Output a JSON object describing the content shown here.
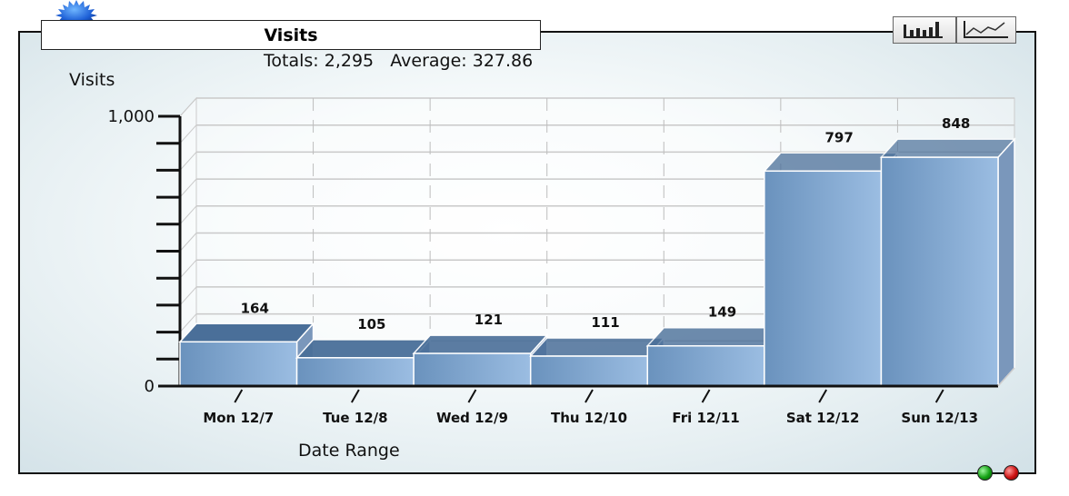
{
  "header": {
    "title": "Visits",
    "totals_label": "Totals:",
    "totals_value": "2,295",
    "average_label": "Average:",
    "average_value": "327.86"
  },
  "toolbar": {
    "bar_icon": "bar-chart-icon",
    "line_icon": "line-chart-icon"
  },
  "status_lights": [
    {
      "name": "green",
      "color": "#13a013"
    },
    {
      "name": "red",
      "color": "#cc1111"
    }
  ],
  "colors": {
    "bar_front_start": "#6a92bd",
    "bar_front_end": "#9bbde2",
    "bar_top": "#4a6f99",
    "axis": "#111111",
    "grid": "#cfcfcf"
  },
  "chart_data": {
    "type": "bar",
    "title": "Visits",
    "ylabel": "Visits",
    "xlabel": "Date Range",
    "ylim": [
      0,
      1000
    ],
    "y_tick_labels": [
      "0",
      "1,000"
    ],
    "grid": true,
    "three_d": true,
    "categories": [
      "Mon 12/7",
      "Tue 12/8",
      "Wed 12/9",
      "Thu 12/10",
      "Fri 12/11",
      "Sat 12/12",
      "Sun 12/13"
    ],
    "values": [
      164,
      105,
      121,
      111,
      149,
      797,
      848
    ],
    "value_labels": [
      "164",
      "105",
      "121",
      "111",
      "149",
      "797",
      "848"
    ]
  }
}
